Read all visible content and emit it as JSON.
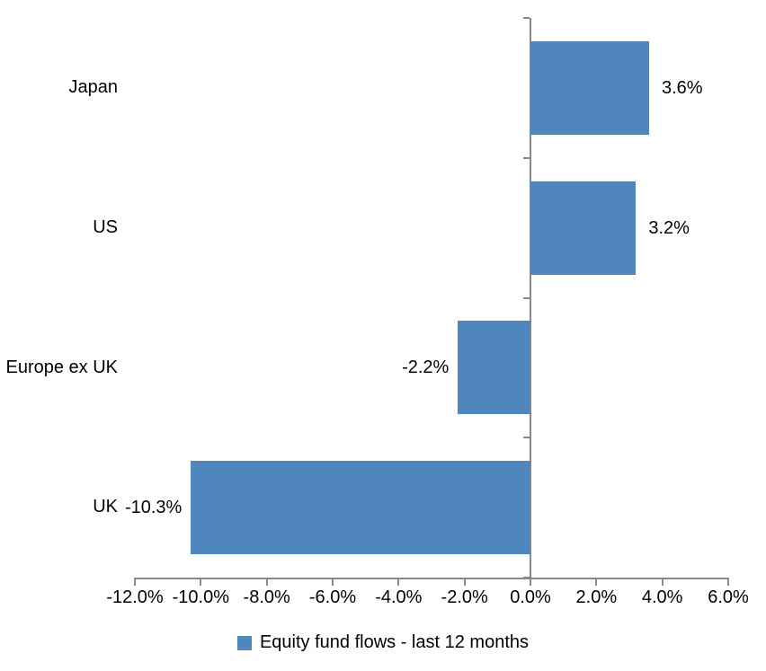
{
  "chart_data": {
    "type": "bar",
    "orientation": "horizontal",
    "title": "",
    "categories": [
      "Japan",
      "US",
      "Europe ex UK",
      "UK"
    ],
    "series": [
      {
        "name": "Equity fund flows - last 12 months",
        "values": [
          3.6,
          3.2,
          -2.2,
          -10.3
        ],
        "data_labels": [
          "3.6%",
          "3.2%",
          "-2.2%",
          "-10.3%"
        ]
      }
    ],
    "x_axis": {
      "min": -12,
      "max": 6,
      "step": 2,
      "tick_labels": [
        "-12.0%",
        "-10.0%",
        "-8.0%",
        "-6.0%",
        "-4.0%",
        "-2.0%",
        "0.0%",
        "2.0%",
        "4.0%",
        "6.0%"
      ]
    },
    "y_axis": {
      "label": "",
      "category_boundary_ticks": true
    },
    "grid": false,
    "legend": {
      "position": "bottom",
      "label": "Equity fund flows - last 12 months"
    },
    "colors": {
      "bar": "#4E86BD",
      "axis": "#898989",
      "text": "#000000",
      "background": "#FFFFFF"
    }
  }
}
